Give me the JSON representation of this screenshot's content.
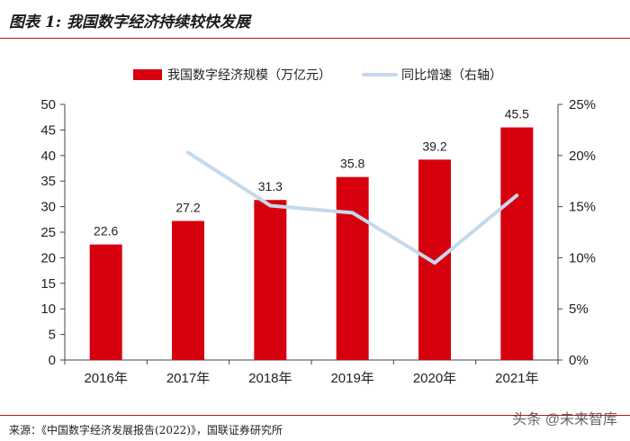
{
  "figure": {
    "title": "图表 1:  我国数字经济持续较快发展",
    "source": "来源：《中国数字经济发展报告(2022)》，国联证券研究所",
    "watermark": "头条 @未来智库"
  },
  "colors": {
    "bar": "#d7000f",
    "line": "#c5d9eb",
    "rule": "#b01820",
    "axis": "#444444"
  },
  "chart_data": {
    "type": "bar",
    "categories": [
      "2016年",
      "2017年",
      "2018年",
      "2019年",
      "2020年",
      "2021年"
    ],
    "series": [
      {
        "name": "我国数字经济规模（万亿元）",
        "type": "bar",
        "axis": "left",
        "values": [
          22.6,
          27.2,
          31.3,
          35.8,
          39.2,
          45.5
        ],
        "data_labels": [
          "22.6",
          "27.2",
          "31.3",
          "35.8",
          "39.2",
          "45.5"
        ]
      },
      {
        "name": "同比增速（右轴）",
        "type": "line",
        "axis": "right",
        "values": [
          null,
          20.3,
          15.1,
          14.4,
          9.5,
          16.1
        ]
      }
    ],
    "y_left": {
      "ylim": [
        0,
        50
      ],
      "ticks": [
        "0",
        "5",
        "10",
        "15",
        "20",
        "25",
        "30",
        "35",
        "40",
        "45",
        "50"
      ]
    },
    "y_right": {
      "ylim": [
        0,
        25
      ],
      "ticks": [
        "0%",
        "5%",
        "10%",
        "15%",
        "20%",
        "25%"
      ]
    },
    "legend_position": "top",
    "grid": false
  }
}
